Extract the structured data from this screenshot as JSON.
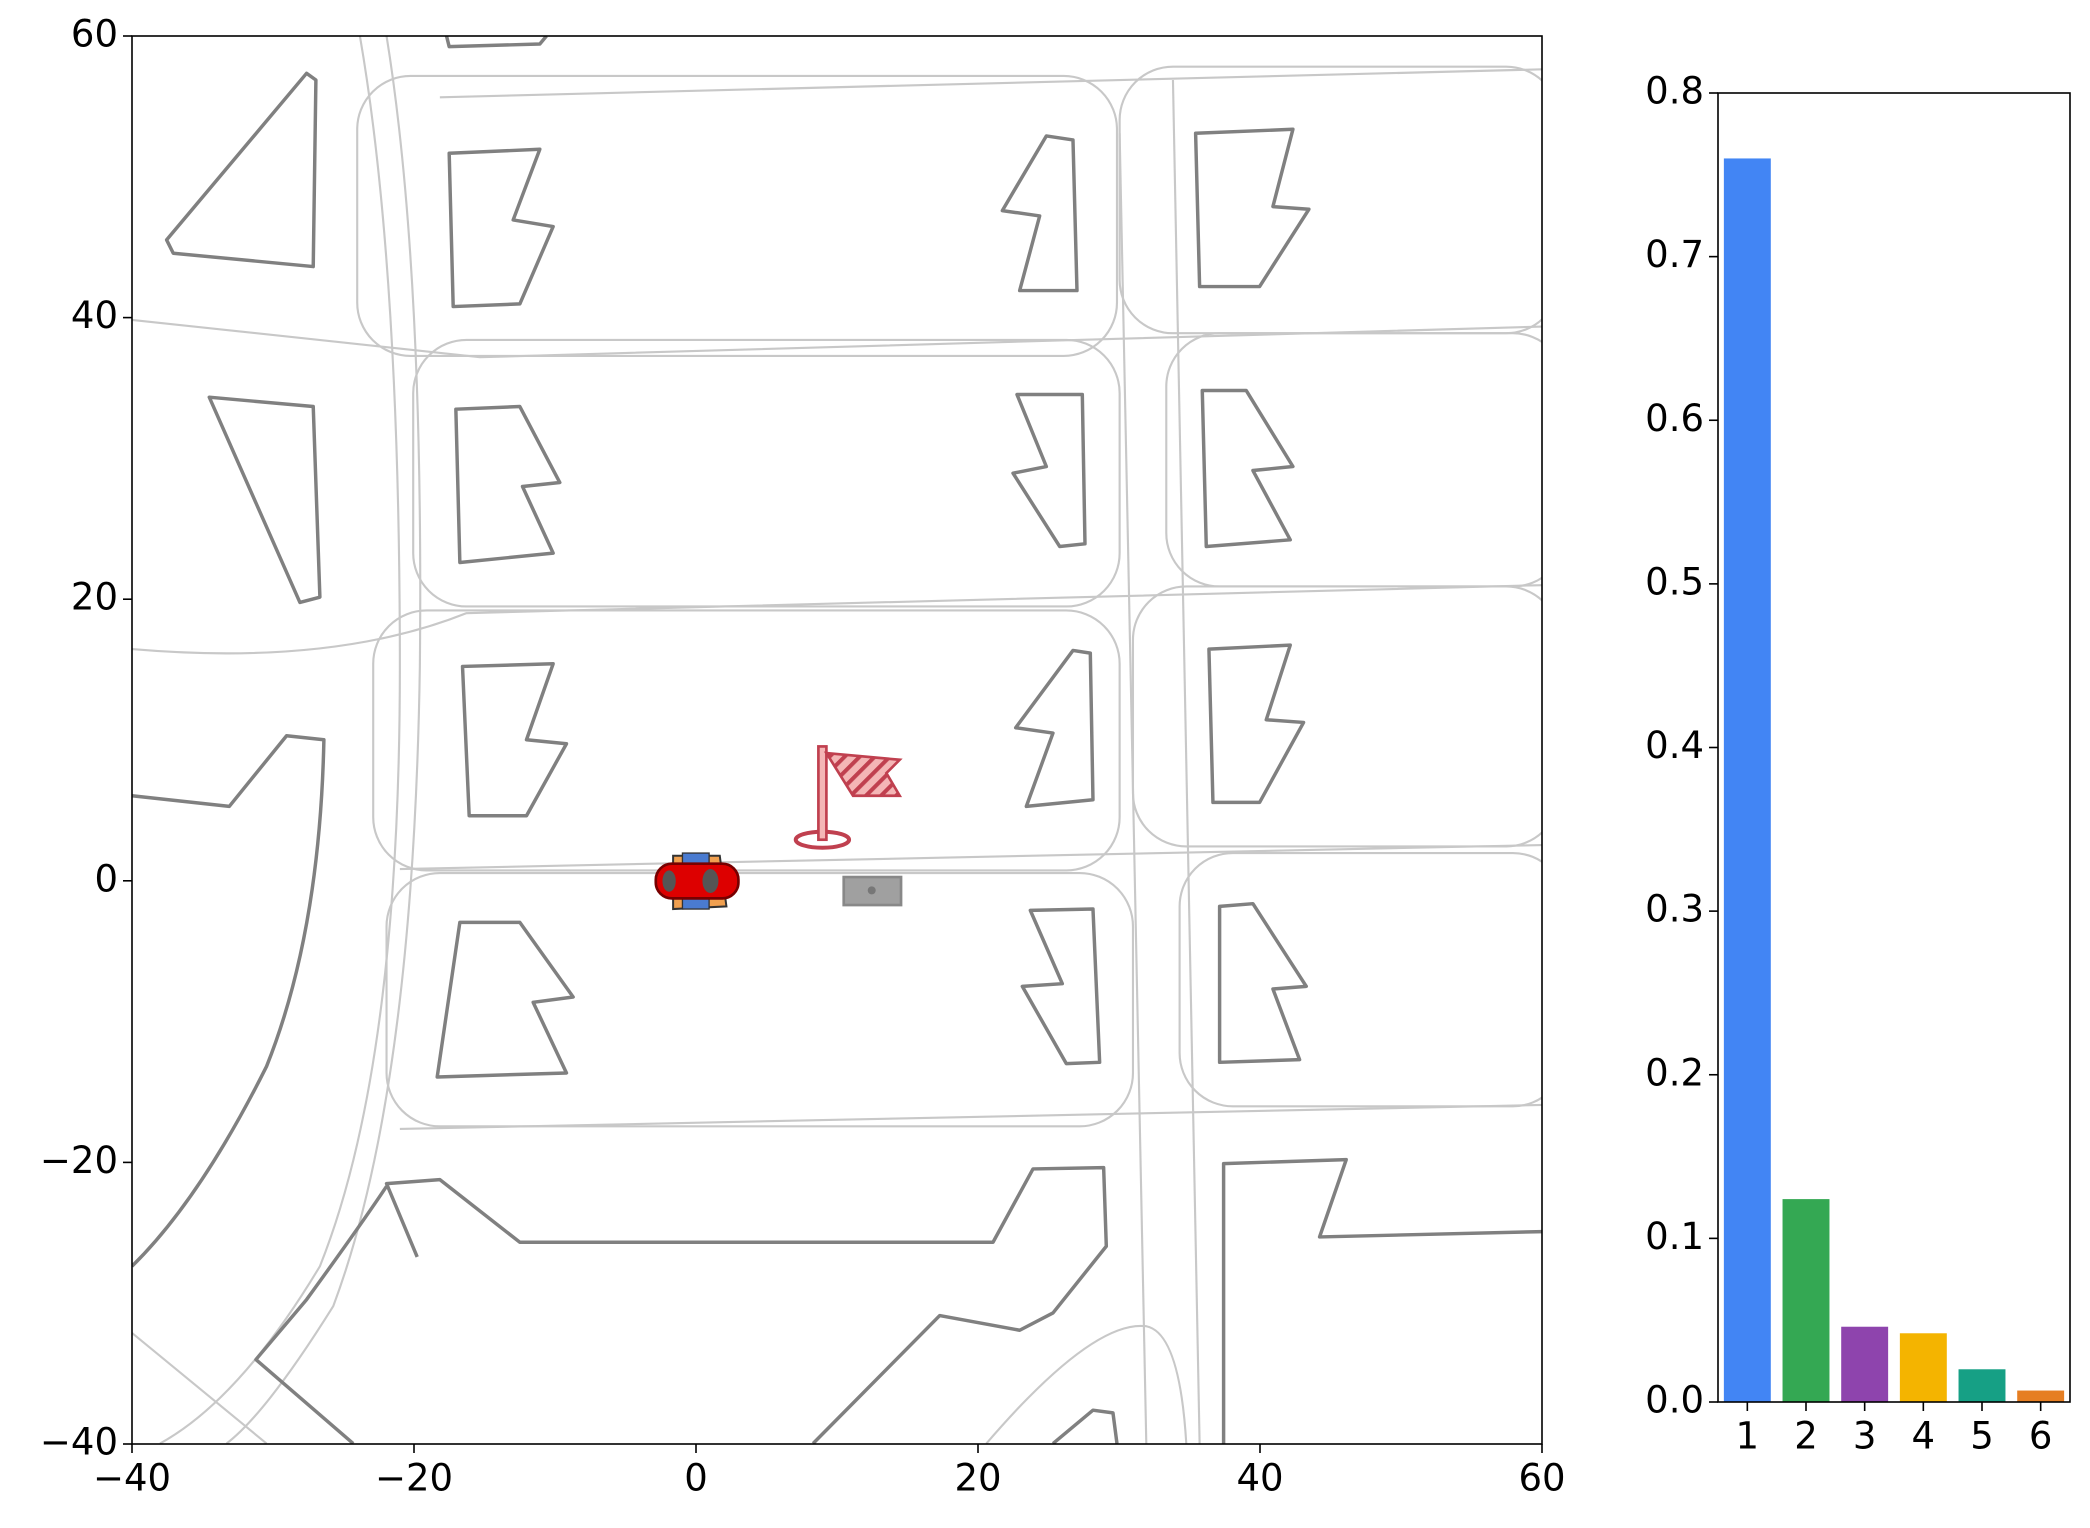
{
  "chart_data": [
    {
      "type": "map",
      "xlim": [
        -40,
        60
      ],
      "xticks": [
        {
          "value": -40,
          "label": "−40"
        },
        {
          "value": -20,
          "label": "−20"
        },
        0,
        20,
        40,
        60
      ],
      "ylim": [
        -40,
        60
      ],
      "yticks": [
        {
          "value": -40,
          "label": "−40"
        },
        {
          "value": -20,
          "label": "−20"
        },
        0,
        20,
        40,
        60
      ]
    },
    {
      "type": "bar",
      "categories": [
        "1",
        "2",
        "3",
        "4",
        "5",
        "6"
      ],
      "values": [
        0.76,
        0.124,
        0.046,
        0.042,
        0.02,
        0.007
      ],
      "colors": [
        "#4285f4",
        "#34a853",
        "#8e44ad",
        "#f4b400",
        "#16a085",
        "#e67e22"
      ],
      "ylim": [
        0,
        0.8
      ],
      "yticks": [
        {
          "value": 0,
          "label": "0.0"
        },
        0.1,
        0.2,
        0.3,
        0.4,
        0.5,
        0.6,
        0.7,
        0.8
      ]
    }
  ]
}
